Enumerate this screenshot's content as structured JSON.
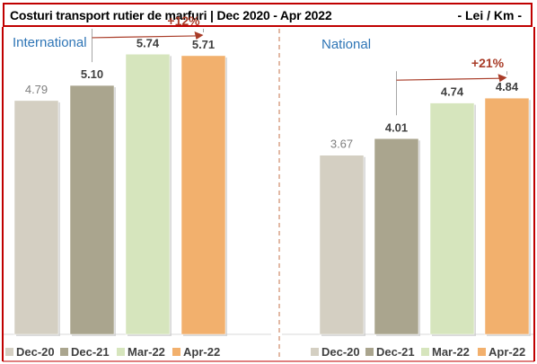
{
  "header": {
    "title": "Costuri transport rutier de marfuri | Dec 2020 - Apr 2022",
    "unit": "- Lei / Km -"
  },
  "colors": {
    "Dec-20": "#d4cfc2",
    "Dec-21": "#aaa58e",
    "Mar-22": "#d6e5bd",
    "Apr-22": "#f2b06d",
    "panel_title": "#2e75b6",
    "growth": "#a93c28",
    "border": "#c00000"
  },
  "chart_data": [
    {
      "type": "bar",
      "title": "International",
      "categories": [
        "Dec-20",
        "Dec-21",
        "Mar-22",
        "Apr-22"
      ],
      "values": [
        4.79,
        5.1,
        5.74,
        5.71
      ],
      "value_labels": [
        "4.79",
        "5.10",
        "5.74",
        "5.71"
      ],
      "growth_label": "+12%",
      "ylim": [
        0,
        6.5
      ],
      "legend": "bottom"
    },
    {
      "type": "bar",
      "title": "National",
      "categories": [
        "Dec-20",
        "Dec-21",
        "Mar-22",
        "Apr-22"
      ],
      "values": [
        3.67,
        4.01,
        4.74,
        4.84
      ],
      "value_labels": [
        "3.67",
        "4.01",
        "4.74",
        "4.84"
      ],
      "growth_label": "+21%",
      "ylim": [
        0,
        6.5
      ],
      "legend": "bottom"
    }
  ]
}
